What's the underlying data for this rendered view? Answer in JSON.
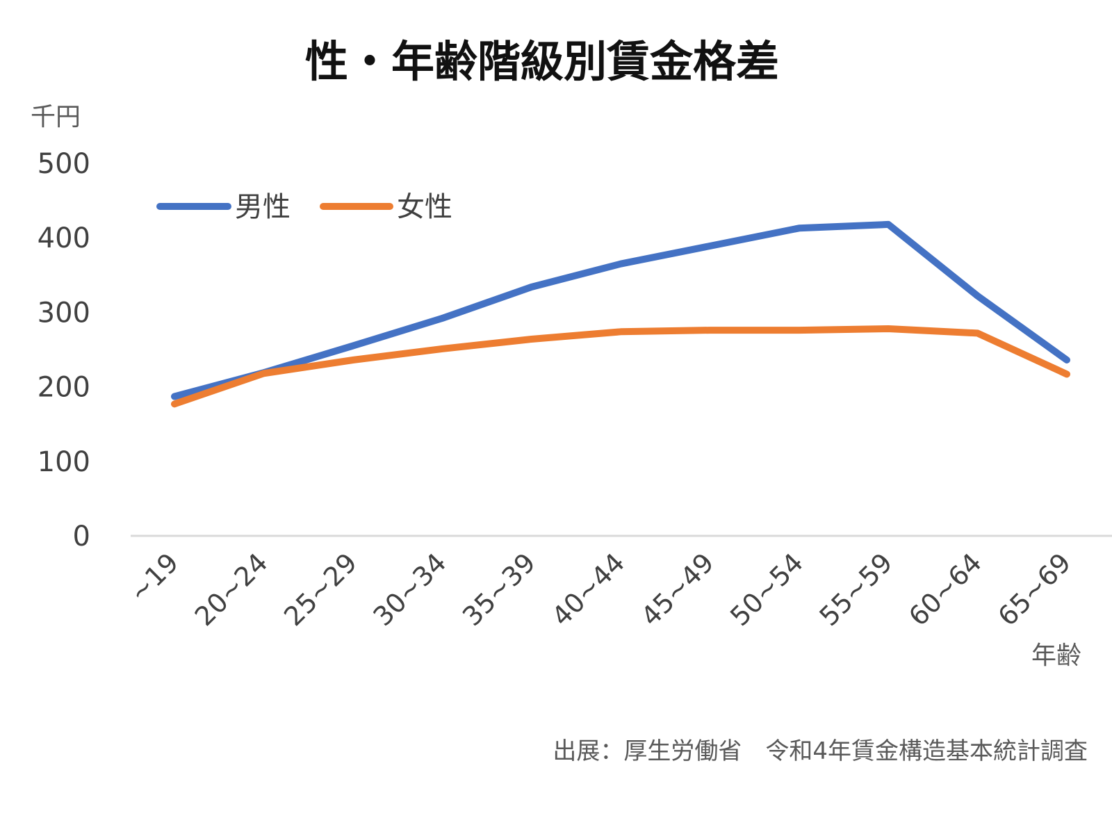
{
  "chart_data": {
    "type": "line",
    "title": "性・年齢階級別賃金格差",
    "ylabel": "千円",
    "xlabel": "年齢",
    "categories": [
      "~19",
      "20~24",
      "25~29",
      "30~34",
      "35~39",
      "40~44",
      "45~49",
      "50~54",
      "55~59",
      "60~64",
      "65~69"
    ],
    "series": [
      {
        "name": "男性",
        "color": "#4472C4",
        "values": [
          187,
          219,
          255,
          292,
          334,
          365,
          389,
          413,
          418,
          322,
          236
        ]
      },
      {
        "name": "女性",
        "color": "#ED7D31",
        "values": [
          177,
          218,
          236,
          251,
          264,
          274,
          276,
          276,
          278,
          272,
          217
        ]
      }
    ],
    "ylim": [
      0,
      500
    ],
    "yticks": [
      0,
      100,
      200,
      300,
      400,
      500
    ],
    "grid": false,
    "legend_position": "top-left",
    "source": "出展：厚生労働省　令和4年賃金構造基本統計調査"
  }
}
